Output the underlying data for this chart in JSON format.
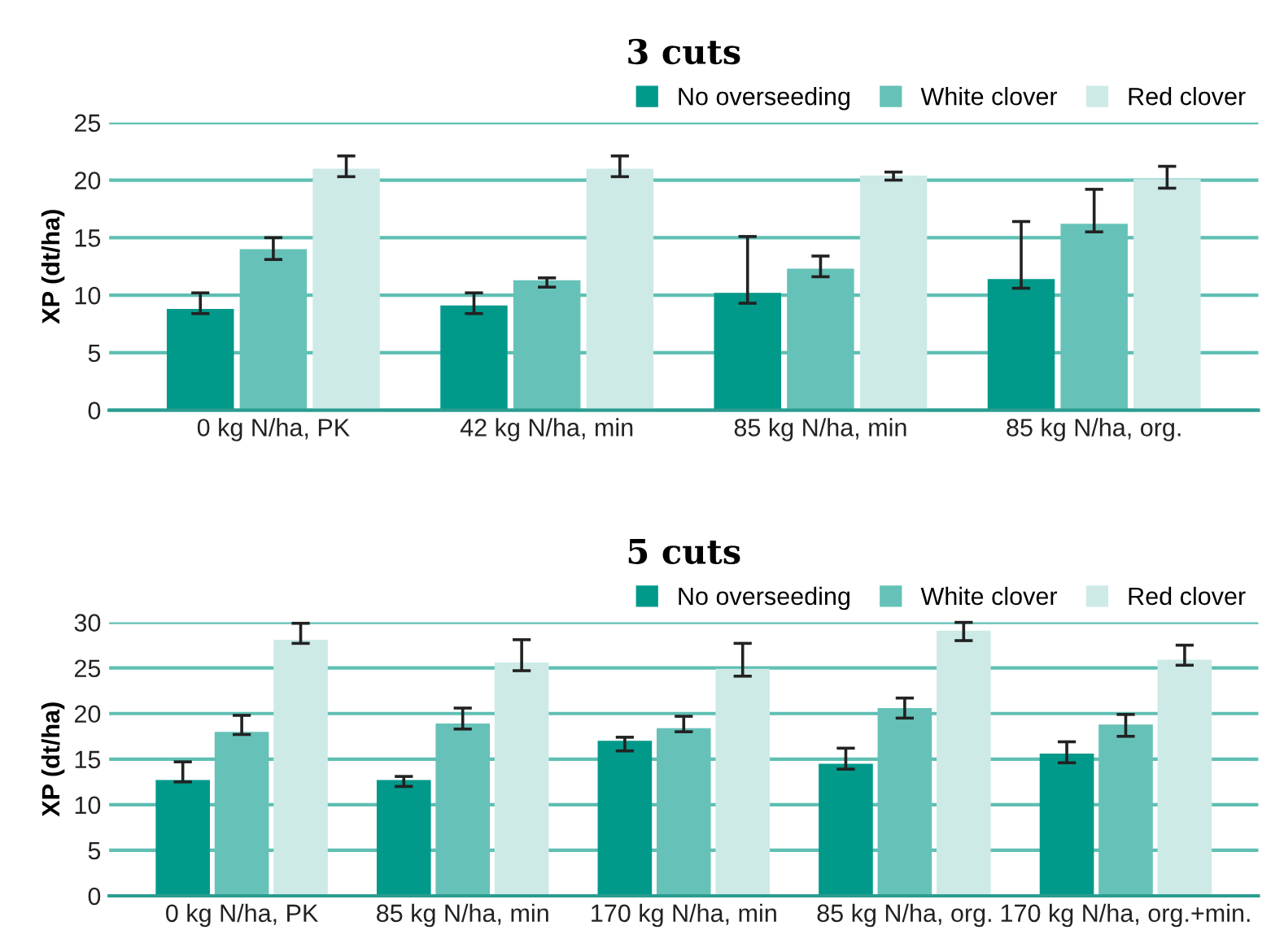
{
  "chart_data": [
    {
      "type": "bar",
      "title": "3 cuts",
      "ylabel": "XP (dt/ha)",
      "categories": [
        "0 kg N/ha, PK",
        "42 kg N/ha, min",
        "85 kg N/ha, min",
        "85 kg N/ha, org."
      ],
      "series": [
        {
          "name": "No overseeding",
          "color": "#00998a",
          "values": [
            8.8,
            9.1,
            10.2,
            11.4
          ],
          "errors": [
            [
              8.4,
              10.2
            ],
            [
              8.4,
              10.2
            ],
            [
              9.3,
              15.1
            ],
            [
              10.6,
              16.4
            ]
          ]
        },
        {
          "name": "White clover",
          "color": "#66c2b8",
          "values": [
            14.0,
            11.3,
            12.3,
            16.2
          ],
          "errors": [
            [
              13.1,
              15.0
            ],
            [
              10.7,
              11.5
            ],
            [
              11.6,
              13.4
            ],
            [
              15.5,
              19.2
            ]
          ]
        },
        {
          "name": "Red clover",
          "color": "#cdeae7",
          "values": [
            21.0,
            21.0,
            20.4,
            20.1
          ],
          "errors": [
            [
              20.3,
              22.1
            ],
            [
              20.3,
              22.1
            ],
            [
              20.0,
              20.7
            ],
            [
              19.3,
              21.2
            ]
          ]
        }
      ],
      "ylim": [
        0,
        25
      ],
      "yticks": [
        0,
        5,
        10,
        15,
        20,
        25
      ],
      "grid": "y",
      "legend": "top right"
    },
    {
      "type": "bar",
      "title": "5 cuts",
      "ylabel": "XP (dt/ha)",
      "categories": [
        "0 kg N/ha, PK",
        "85 kg N/ha, min",
        "170 kg N/ha, min",
        "85 kg N/ha, org.",
        "170 kg N/ha, org.+min."
      ],
      "series": [
        {
          "name": "No overseeding",
          "color": "#00998a",
          "values": [
            12.7,
            12.7,
            17.0,
            14.5,
            15.6
          ],
          "errors": [
            [
              12.5,
              14.7
            ],
            [
              12.0,
              13.1
            ],
            [
              15.9,
              17.4
            ],
            [
              13.9,
              16.2
            ],
            [
              14.6,
              16.9
            ]
          ]
        },
        {
          "name": "White clover",
          "color": "#66c2b8",
          "values": [
            18.0,
            18.9,
            18.4,
            20.6,
            18.8
          ],
          "errors": [
            [
              17.7,
              19.8
            ],
            [
              18.3,
              20.6
            ],
            [
              18.0,
              19.7
            ],
            [
              19.5,
              21.7
            ],
            [
              17.5,
              19.9
            ]
          ]
        },
        {
          "name": "Red clover",
          "color": "#cdeae7",
          "values": [
            28.1,
            25.6,
            24.9,
            29.1,
            25.9
          ],
          "errors": [
            [
              27.7,
              29.9
            ],
            [
              24.7,
              28.1
            ],
            [
              24.1,
              27.7
            ],
            [
              28.0,
              30.0
            ],
            [
              25.3,
              27.5
            ]
          ]
        }
      ],
      "ylim": [
        0,
        30
      ],
      "yticks": [
        0,
        5,
        10,
        15,
        20,
        25,
        30
      ],
      "grid": "y",
      "legend": "top right"
    }
  ]
}
